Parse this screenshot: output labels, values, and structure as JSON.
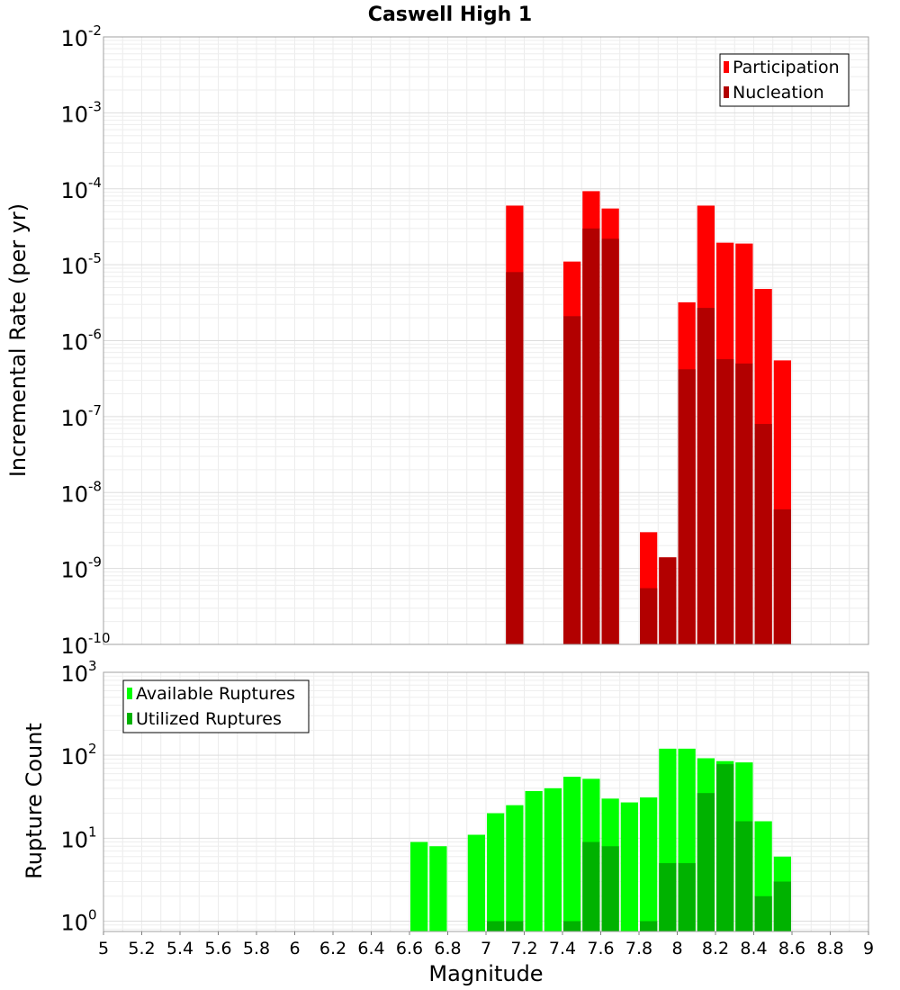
{
  "chart_data": [
    {
      "type": "bar",
      "title": "Caswell High 1",
      "ylabel": "Incremental Rate (per yr)",
      "xlabel": "",
      "yscale": "log",
      "ylim": [
        1e-10,
        0.01
      ],
      "xlim": [
        5,
        9
      ],
      "ytick_exponents": [
        "-10",
        "-9",
        "-8",
        "-7",
        "-6",
        "-5",
        "-4",
        "-3",
        "-2"
      ],
      "legend": {
        "position": "top-right",
        "entries": [
          "Participation",
          "Nucleation"
        ]
      },
      "colors": {
        "Participation": "#ff0000",
        "Nucleation": "#b20000"
      },
      "grid": true,
      "series": [
        {
          "name": "Participation",
          "x": [
            7.15,
            7.45,
            7.55,
            7.65,
            7.85,
            7.95,
            8.05,
            8.15,
            8.25,
            8.35,
            8.45,
            8.55
          ],
          "values": [
            6e-05,
            1.1e-05,
            9.3e-05,
            5.5e-05,
            3e-09,
            1.4e-09,
            3.2e-06,
            6e-05,
            1.95e-05,
            1.9e-05,
            4.8e-06,
            5.5e-07
          ]
        },
        {
          "name": "Nucleation",
          "x": [
            7.15,
            7.45,
            7.55,
            7.65,
            7.85,
            7.95,
            8.05,
            8.15,
            8.25,
            8.35,
            8.45,
            8.55
          ],
          "values": [
            8e-06,
            2.1e-06,
            3e-05,
            2.2e-05,
            5.5e-10,
            1.4e-09,
            4.2e-07,
            2.7e-06,
            5.7e-07,
            5e-07,
            8e-08,
            6e-09
          ]
        }
      ]
    },
    {
      "type": "bar",
      "title": "",
      "ylabel": "Rupture Count",
      "xlabel": "Magnitude",
      "yscale": "log",
      "ylim": [
        0.75,
        1000
      ],
      "xlim": [
        5,
        9
      ],
      "ytick_exponents": [
        "0",
        "1",
        "2",
        "3"
      ],
      "x_ticks": [
        "5",
        "5.2",
        "5.4",
        "5.6",
        "5.8",
        "6",
        "6.2",
        "6.4",
        "6.6",
        "6.8",
        "7",
        "7.2",
        "7.4",
        "7.6",
        "7.8",
        "8",
        "8.2",
        "8.4",
        "8.6",
        "8.8",
        "9"
      ],
      "legend": {
        "position": "top-left",
        "entries": [
          "Available Ruptures",
          "Utilized Ruptures"
        ]
      },
      "colors": {
        "Available Ruptures": "#00ff00",
        "Utilized Ruptures": "#00b200"
      },
      "grid": true,
      "series": [
        {
          "name": "Available Ruptures",
          "x": [
            6.65,
            6.75,
            6.95,
            7.05,
            7.15,
            7.25,
            7.35,
            7.45,
            7.55,
            7.65,
            7.75,
            7.85,
            7.95,
            8.05,
            8.15,
            8.25,
            8.35,
            8.45,
            8.55
          ],
          "values": [
            9,
            8,
            11,
            20,
            25,
            37,
            40,
            55,
            52,
            30,
            27,
            31,
            120,
            120,
            92,
            85,
            82,
            16,
            6
          ]
        },
        {
          "name": "Utilized Ruptures",
          "x": [
            7.05,
            7.15,
            7.45,
            7.55,
            7.65,
            7.85,
            7.95,
            8.05,
            8.15,
            8.25,
            8.35,
            8.45,
            8.55
          ],
          "values": [
            1,
            1,
            1,
            9,
            8,
            1,
            5,
            5,
            35,
            78,
            16,
            2,
            3
          ]
        }
      ]
    }
  ]
}
